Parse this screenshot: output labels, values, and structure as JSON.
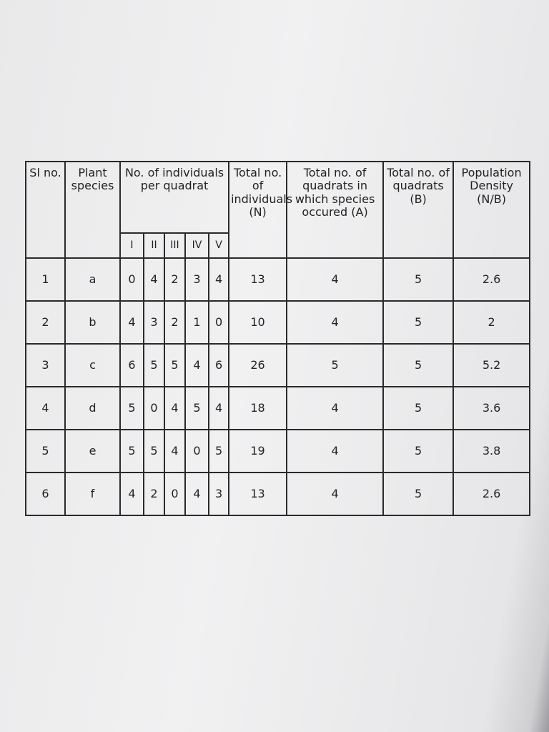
{
  "table": {
    "headers": {
      "sl_no": "Sl no.",
      "plant_species": "Plant species",
      "individuals_per_quadrat": "No. of individuals per quadrat",
      "quadrats": [
        "I",
        "II",
        "III",
        "IV",
        "V"
      ],
      "total_individuals": "Total no. of individuals (N)",
      "quadrats_occurred": "Total no. of quadrats in which species occured (A)",
      "total_quadrats": "Total no. of quadrats (B)",
      "population_density": "Population Density (N/B)"
    },
    "rows": [
      [
        1,
        "a",
        0,
        4,
        2,
        3,
        4,
        13,
        4,
        5,
        2.6
      ],
      [
        2,
        "b",
        4,
        3,
        2,
        1,
        0,
        10,
        4,
        5,
        2
      ],
      [
        3,
        "c",
        6,
        5,
        5,
        4,
        6,
        26,
        5,
        5,
        5.2
      ],
      [
        4,
        "d",
        5,
        0,
        4,
        5,
        4,
        18,
        4,
        5,
        3.6
      ],
      [
        5,
        "e",
        5,
        5,
        4,
        0,
        5,
        19,
        4,
        5,
        3.8
      ],
      [
        6,
        "f",
        4,
        2,
        0,
        4,
        3,
        13,
        4,
        5,
        2.6
      ]
    ]
  }
}
